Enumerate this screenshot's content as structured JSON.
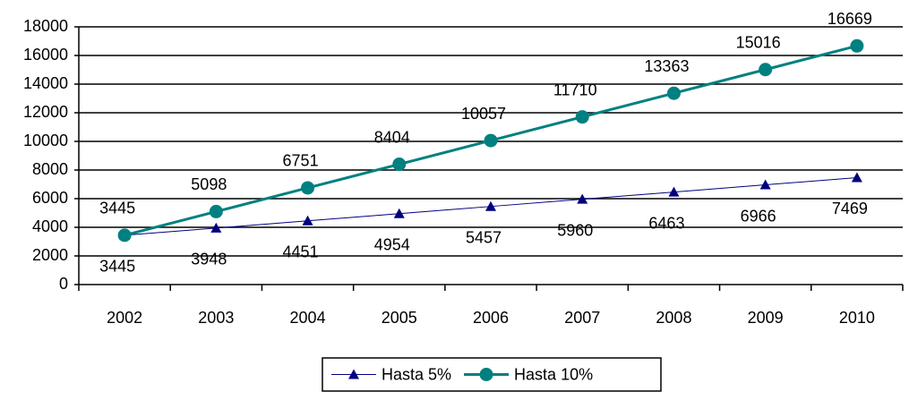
{
  "chart_data": {
    "type": "line",
    "categories": [
      "2002",
      "2003",
      "2004",
      "2005",
      "2006",
      "2007",
      "2008",
      "2009",
      "2010"
    ],
    "series": [
      {
        "name": "Hasta 5%",
        "color": "#000080",
        "marker": "triangle",
        "values": [
          3445,
          3948,
          4451,
          4954,
          5457,
          5960,
          6463,
          6966,
          7469
        ]
      },
      {
        "name": "Hasta 10%",
        "color": "#008080",
        "marker": "circle",
        "values": [
          3445,
          5098,
          6751,
          8404,
          10057,
          11710,
          13363,
          15016,
          16669
        ]
      }
    ],
    "ylim": [
      0,
      18000
    ],
    "yticks": [
      0,
      2000,
      4000,
      6000,
      8000,
      10000,
      12000,
      14000,
      16000,
      18000
    ],
    "grid": true,
    "legend": "bottom"
  }
}
